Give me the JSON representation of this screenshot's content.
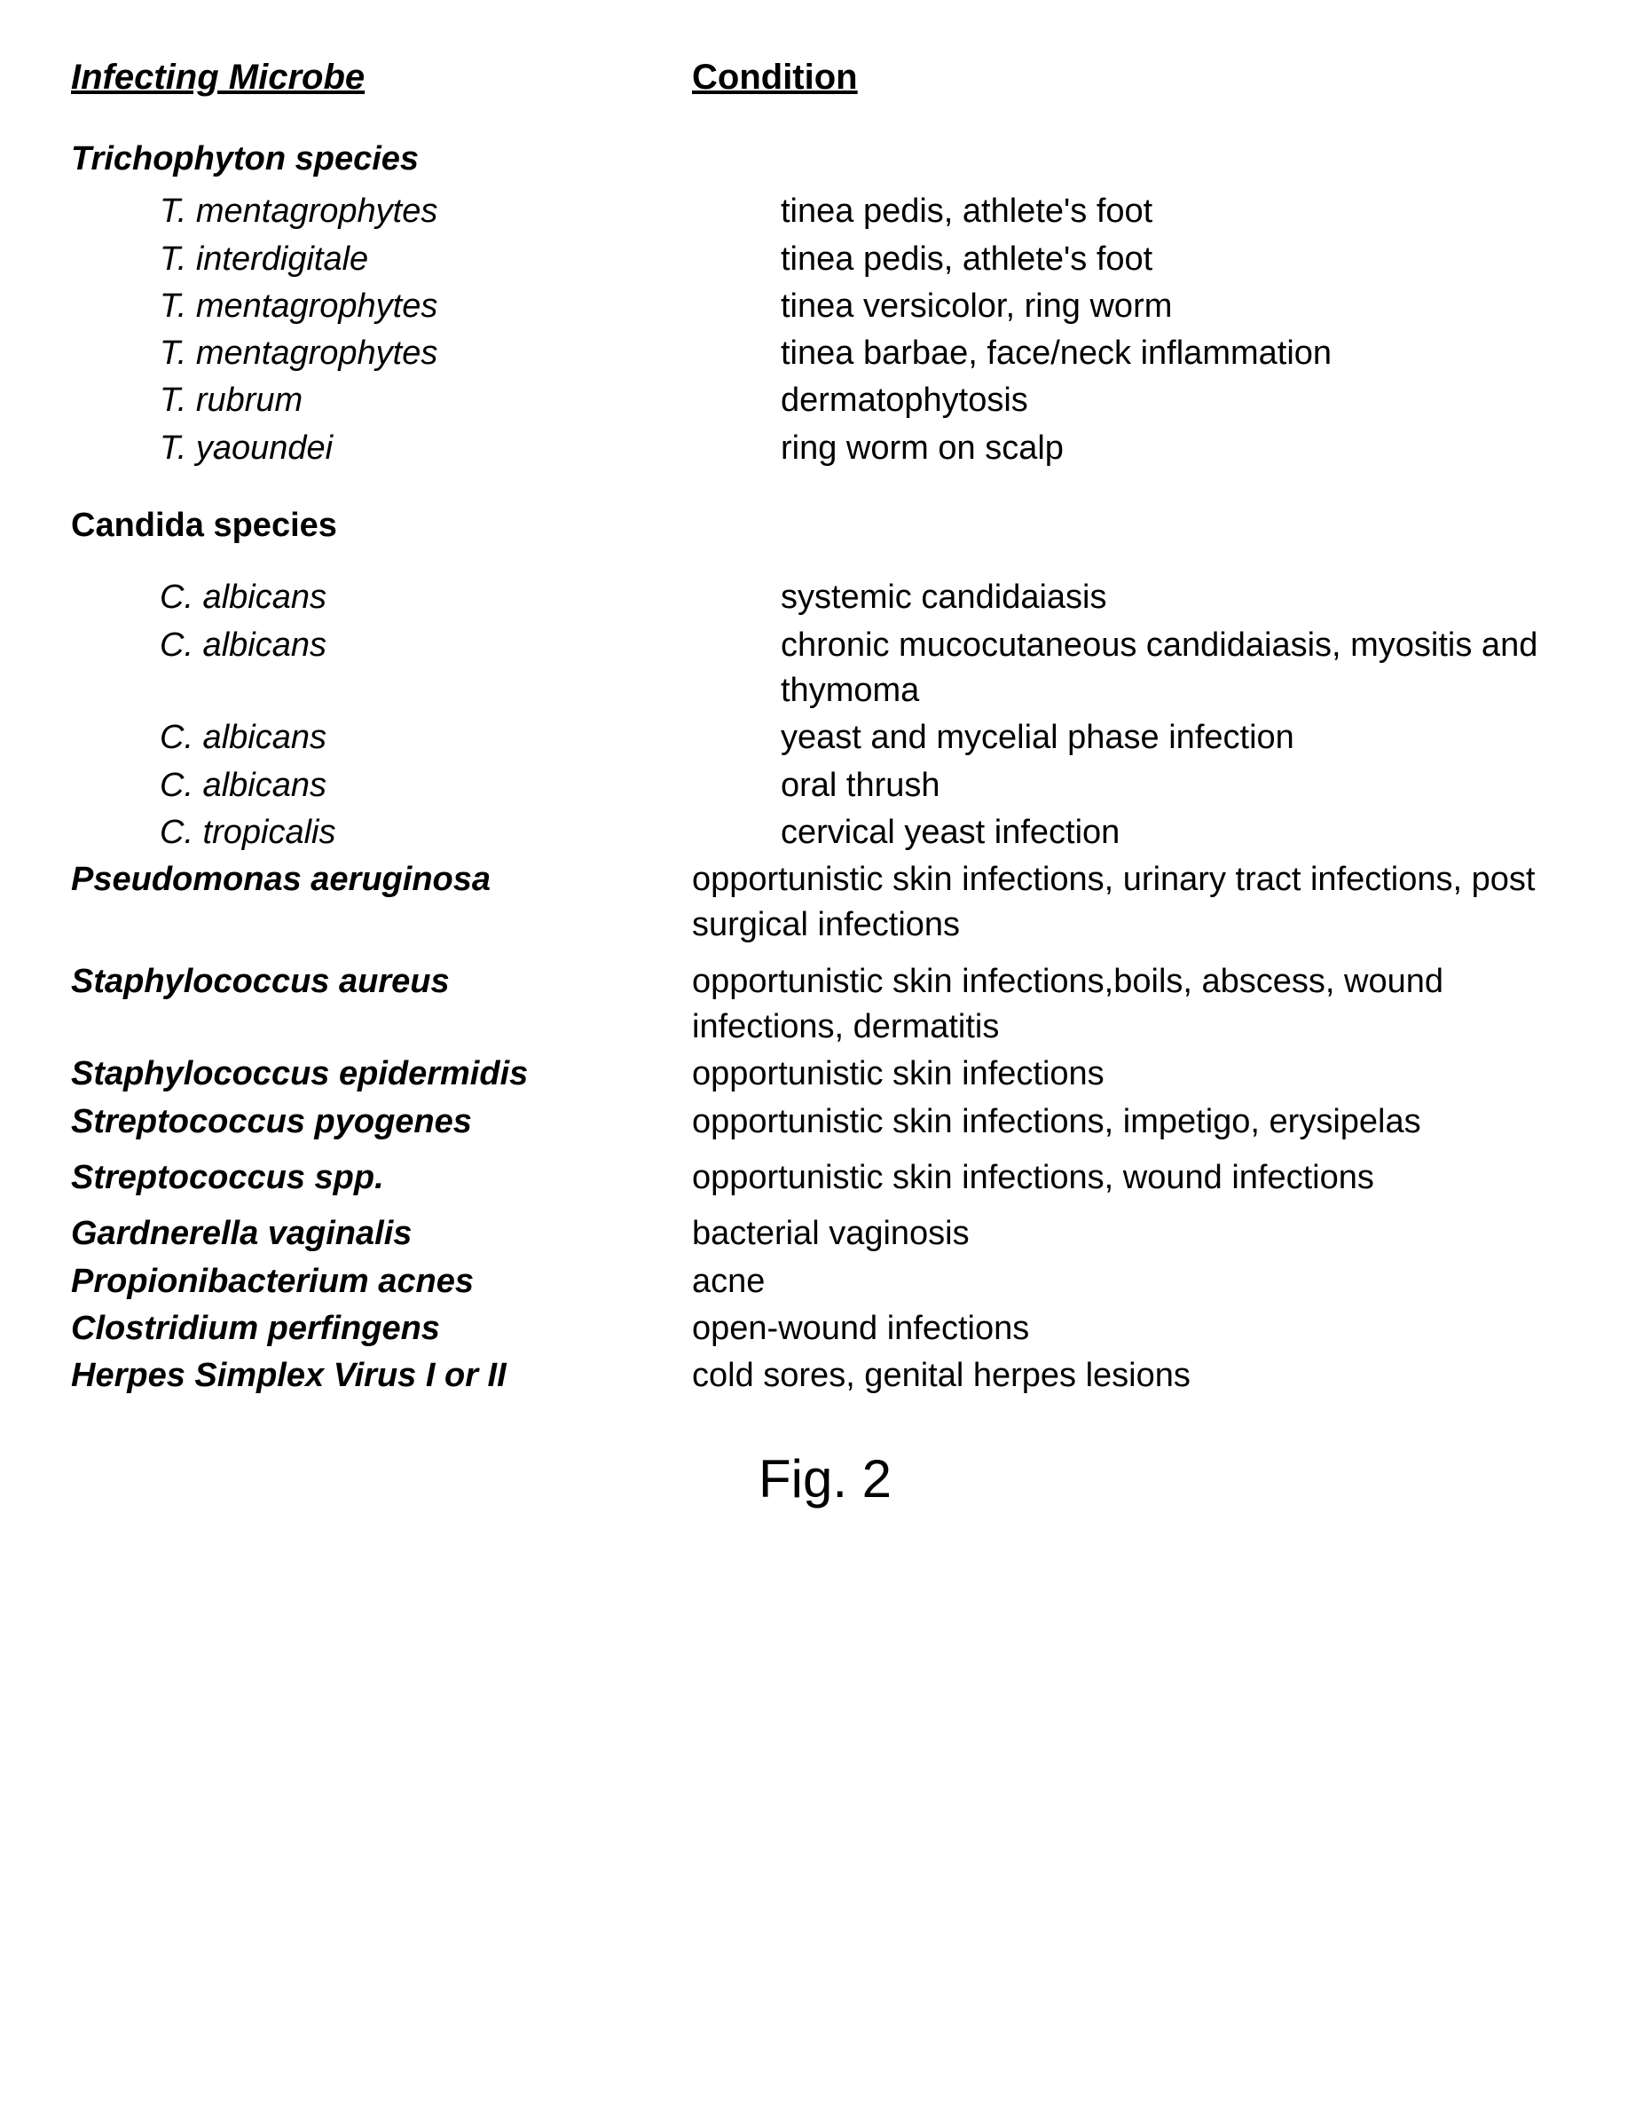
{
  "headers": {
    "col1": "Infecting Microbe",
    "col2": "Condition"
  },
  "groups": [
    {
      "title": "Trichophyton species",
      "title_style": "italic",
      "rows": [
        {
          "microbe": "T. mentagrophytes",
          "condition": "tinea pedis, athlete's foot",
          "indent": true
        },
        {
          "microbe": "T. interdigitale",
          "condition": "tinea pedis, athlete's foot",
          "indent": true
        },
        {
          "microbe": "T. mentagrophytes",
          "condition": "tinea versicolor, ring worm",
          "indent": true
        },
        {
          "microbe": "T. mentagrophytes",
          "condition": "tinea barbae, face/neck inflammation",
          "indent": true
        },
        {
          "microbe": "T. rubrum",
          "condition": "dermatophytosis",
          "indent": true
        },
        {
          "microbe": "T. yaoundei",
          "condition": "ring worm on scalp",
          "indent": true
        }
      ]
    },
    {
      "title": "Candida species",
      "title_style": "normal",
      "rows": [
        {
          "microbe": "C. albicans",
          "condition": "systemic candidaiasis",
          "indent": true
        },
        {
          "microbe": "C. albicans",
          "condition": "chronic mucocutaneous candidaiasis, myositis and thymoma",
          "indent": true
        },
        {
          "microbe": "C. albicans",
          "condition": "yeast and mycelial phase infection",
          "indent": true
        },
        {
          "microbe": "C. albicans",
          "condition": "oral thrush",
          "indent": true
        },
        {
          "microbe": "C. tropicalis",
          "condition": "cervical yeast infection",
          "indent": true
        },
        {
          "microbe": "Pseudomonas aeruginosa",
          "condition": "opportunistic skin infections, urinary tract infections, post surgical infections",
          "indent": false,
          "bold": true
        },
        {
          "microbe": "Staphylococcus aureus",
          "condition": "opportunistic skin infections,boils, abscess, wound infections, dermatitis",
          "indent": false,
          "bold": true,
          "spaceBefore": true
        },
        {
          "microbe": "Staphylococcus epidermidis",
          "condition": "opportunistic skin infections",
          "indent": false,
          "bold": true
        },
        {
          "microbe": "Streptococcus pyogenes",
          "condition": "opportunistic skin infections, impetigo, erysipelas",
          "indent": false,
          "bold": true
        },
        {
          "microbe": "Streptococcus spp.",
          "condition": "opportunistic skin infections, wound infections",
          "indent": false,
          "bold": true,
          "spaceBefore": true
        },
        {
          "microbe": "Gardnerella vaginalis",
          "condition": "bacterial vaginosis",
          "indent": false,
          "bold": true,
          "spaceBefore": true
        },
        {
          "microbe": "Propionibacterium acnes",
          "condition": "acne",
          "indent": false,
          "bold": true
        },
        {
          "microbe": "Clostridium perfingens",
          "condition": "open-wound infections",
          "indent": false,
          "bold": true
        },
        {
          "microbe": "Herpes Simplex Virus I or II",
          "condition": "cold sores, genital herpes lesions",
          "indent": false,
          "bold": true
        }
      ]
    }
  ],
  "figure": "Fig. 2",
  "colors": {
    "text": "#000000",
    "background": "#ffffff"
  },
  "typography": {
    "base_fontsize": 38,
    "header_fontsize": 40,
    "figure_fontsize": 60,
    "font_family": "Arial, Helvetica, sans-serif"
  }
}
